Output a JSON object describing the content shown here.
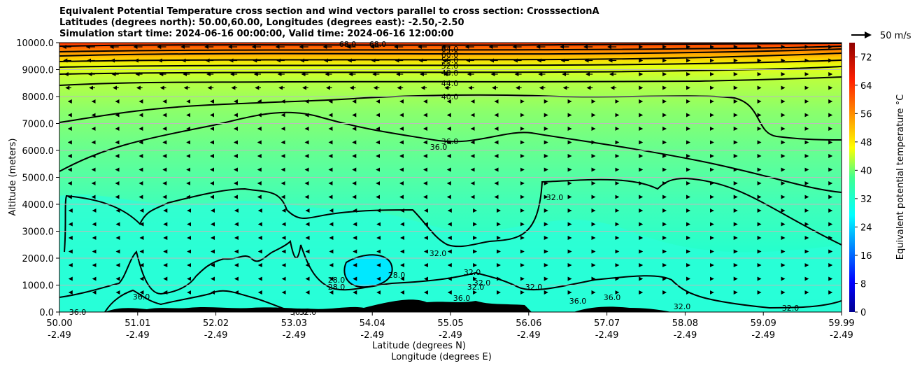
{
  "chart_data": {
    "type": "contour",
    "title_lines": [
      "Equivalent Potential Temperature cross section and wind vectors parallel to cross section: CrosssectionA",
      "Latitudes (degrees north): 50.00,60.00, Longitudes (degrees east): -2.50,-2.50",
      "Simulation start time: 2024-06-16 00:00:00, Valid time: 2024-06-16 12:00:00"
    ],
    "ylabel": "Altitude (meters)",
    "xlabel_lat": "Latitude (degrees N)",
    "xlabel_lon": "Longitude (degrees E)",
    "ylim": [
      0,
      10000
    ],
    "y_ticks": [
      "0.0",
      "1000.0",
      "2000.0",
      "3000.0",
      "4000.0",
      "5000.0",
      "6000.0",
      "7000.0",
      "8000.0",
      "9000.0",
      "10000.0"
    ],
    "x_ticks_lat": [
      "50.00",
      "51.01",
      "52.02",
      "53.03",
      "54.04",
      "55.05",
      "56.06",
      "57.07",
      "58.08",
      "59.09",
      "59.99"
    ],
    "x_ticks_lon": [
      "-2.49",
      "-2.49",
      "-2.49",
      "-2.49",
      "-2.49",
      "-2.49",
      "-2.49",
      "-2.49",
      "-2.49",
      "-2.49",
      "-2.49"
    ],
    "grid": true,
    "colorbar": {
      "label": "Equivalent potential temperature °C",
      "ticks": [
        "0",
        "8",
        "16",
        "24",
        "32",
        "40",
        "48",
        "56",
        "64",
        "72"
      ],
      "range": [
        0,
        76
      ],
      "colormap": "jet"
    },
    "quiver_key": "50 m/s",
    "contour_labels": [
      "68.0",
      "68.0",
      "64.0",
      "60.0",
      "56.0",
      "52.0",
      "48.0",
      "44.0",
      "40.0",
      "36.0",
      "36.0",
      "32.0",
      "32.0",
      "32.0",
      "32.0",
      "32.0",
      "32.0",
      "32.0",
      "32.0",
      "28.0",
      "28.0",
      "28.0",
      "36.0",
      "36.0",
      "36.0",
      "36.0",
      "36.0",
      "36.0",
      "32.0"
    ]
  }
}
